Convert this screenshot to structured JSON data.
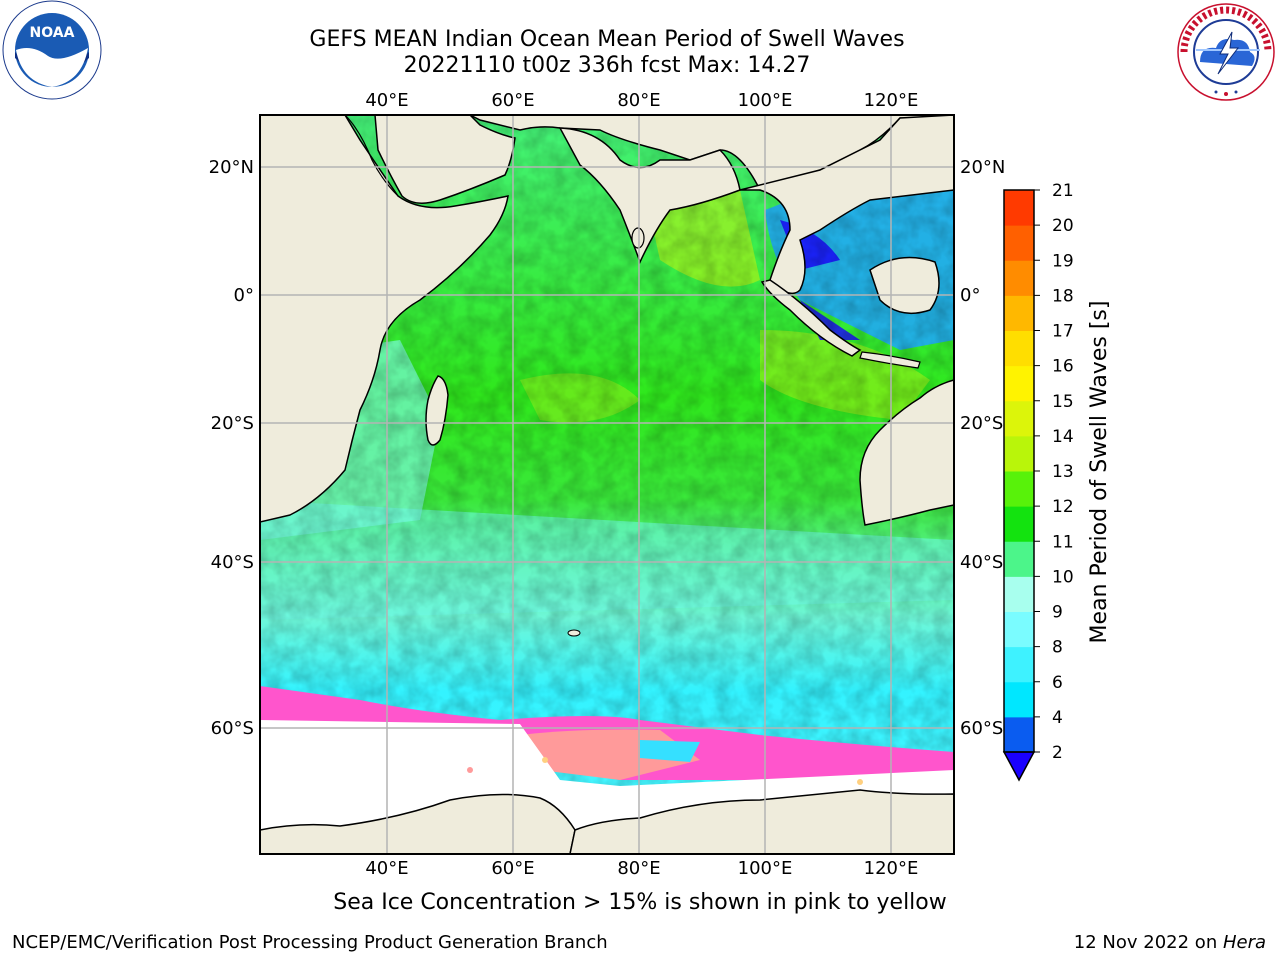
{
  "title_line1": "GEFS MEAN Indian Ocean Mean Period of Swell Waves",
  "title_line2": "20221110 t00z 336h fcst   Max: 14.27",
  "noaa_logo_text": "NOAA",
  "noaa_ring_text": "NATIONAL OCEANIC AND ATMOSPHERIC ADMINISTRATION · U.S. DEPARTMENT OF COMMERCE",
  "nws_ring_text": "NATIONAL WEATHER SERVICE",
  "lon_labels": [
    "40°E",
    "60°E",
    "80°E",
    "100°E",
    "120°E"
  ],
  "lat_labels": [
    "20°N",
    "0°",
    "20°S",
    "40°S",
    "60°S"
  ],
  "colorbar": {
    "label": "Mean Period of Swell Waves [s]",
    "ticks": [
      "2",
      "4",
      "6",
      "8",
      "9",
      "10",
      "11",
      "12",
      "13",
      "14",
      "15",
      "16",
      "17",
      "18",
      "19",
      "20",
      "21"
    ],
    "colors": [
      "#0a5cf0",
      "#00e7ff",
      "#3ef2ff",
      "#7afcff",
      "#a8ffee",
      "#4cf58a",
      "#13e30f",
      "#58f20a",
      "#b9f50a",
      "#dcf50a",
      "#fff300",
      "#ffde00",
      "#ffb800",
      "#ff8c00",
      "#ff6000",
      "#ff3a00",
      "#ff0f00"
    ],
    "under_color": "#1a00ff"
  },
  "colors": {
    "land": "#efecdc",
    "ice_white": "#ffffff",
    "ice_pink": "#ff55cc",
    "ice_salmon": "#ff9a9a",
    "ice_yellow": "#ffd080",
    "grid": "#b4b4b4"
  },
  "sea_ice_note": "Sea Ice Concentration > 15% is shown in pink to yellow",
  "footer_left": "NCEP/EMC/Verification Post Processing Product Generation Branch",
  "footer_date": "12 Nov 2022 on ",
  "footer_machine": "Hera"
}
